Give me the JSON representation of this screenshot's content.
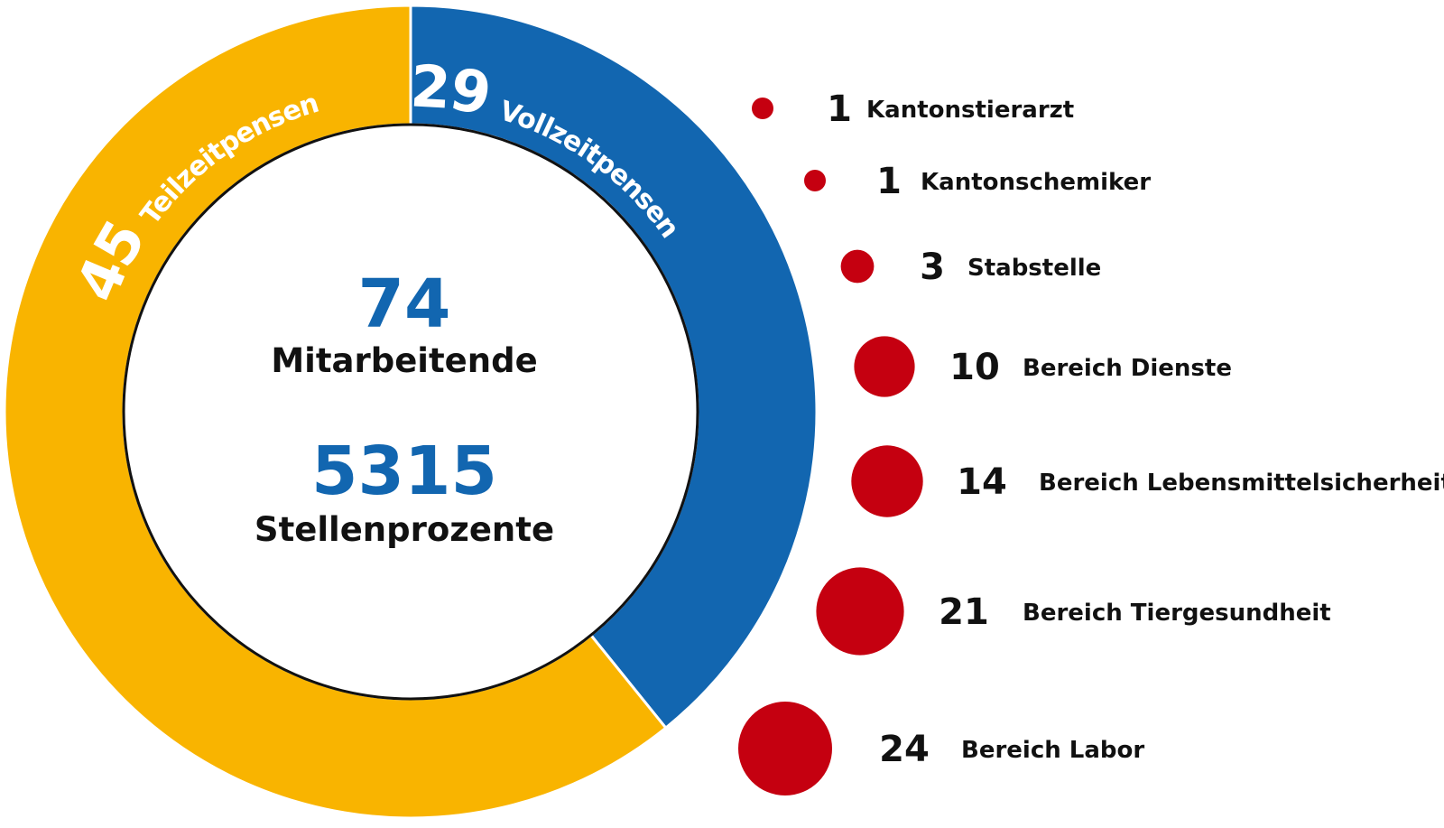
{
  "chart_data": [
    {
      "type": "pie",
      "donut": true,
      "title": "",
      "center": {
        "value1": "74",
        "label1": "Mitarbeitende",
        "value2": "5315",
        "label2": "Stellenprozente"
      },
      "segments": [
        {
          "name": "Vollzeitpensen",
          "value": 29,
          "color": "#1266b0"
        },
        {
          "name": "Teilzeitpensen",
          "value": 45,
          "color": "#f9b400"
        }
      ]
    },
    {
      "type": "scatter",
      "bubble": true,
      "title": "",
      "color": "#c50010",
      "items": [
        {
          "value": 1,
          "label": "Kantonstierarzt"
        },
        {
          "value": 1,
          "label": "Kantonschemiker"
        },
        {
          "value": 3,
          "label": "Stabstelle"
        },
        {
          "value": 10,
          "label": "Bereich Dienste"
        },
        {
          "value": 14,
          "label": "Bereich Lebensmittelsicherheit"
        },
        {
          "value": 21,
          "label": "Bereich Tiergesundheit"
        },
        {
          "value": 24,
          "label": "Bereich Labor"
        }
      ]
    }
  ]
}
